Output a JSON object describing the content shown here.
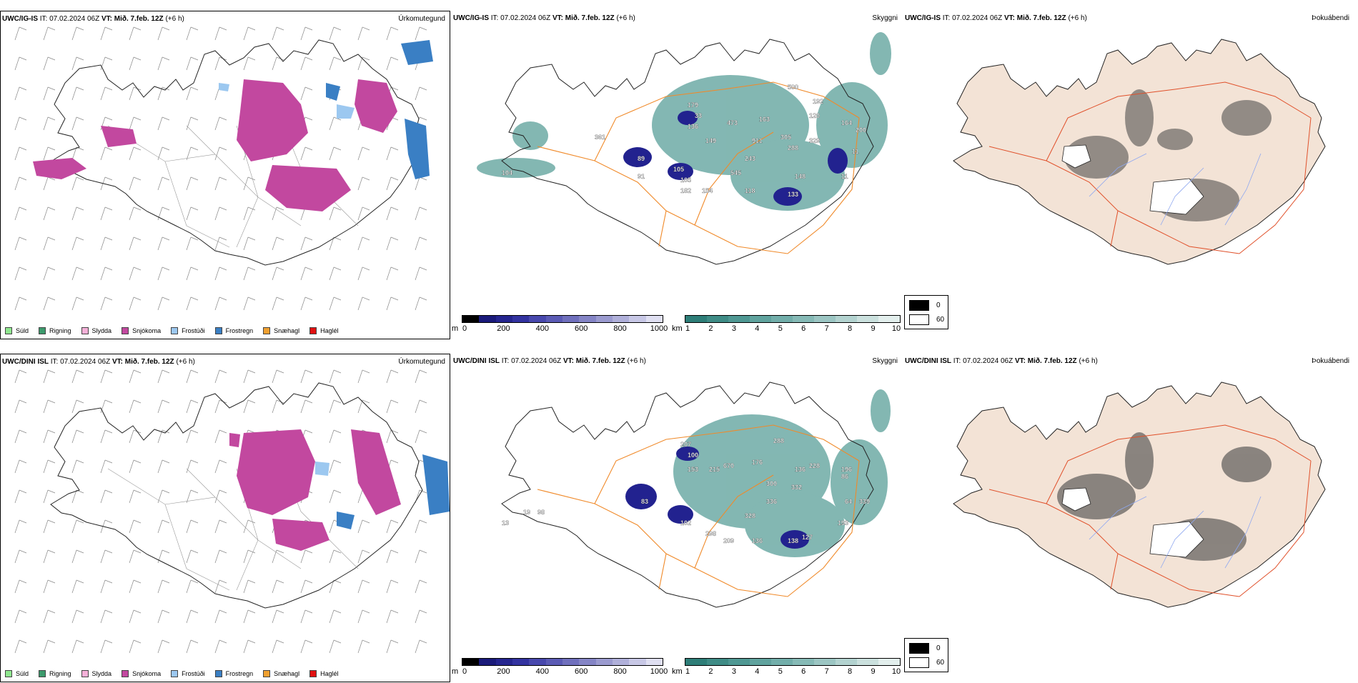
{
  "rows": [
    {
      "model": "UWC/IG-IS",
      "it_label": "IT:",
      "it_value": "07.02.2024 06Z",
      "vt_label": "VT:",
      "vt_value": "Mið. 7.feb. 12Z",
      "lead": "(+6 h)",
      "fields": {
        "precip": "Úrkomutegund",
        "ceiling": "Skyggni",
        "fog": "Þokuábendi"
      },
      "ceiling_labels": [
        "179",
        "361",
        "33",
        "473",
        "163",
        "500",
        "192",
        "136",
        "149",
        "911",
        "305",
        "329",
        "120",
        "164",
        "200",
        "89",
        "243",
        "288",
        "11",
        "105",
        "545",
        "105",
        "91",
        "148",
        "154",
        "182",
        "118",
        "133",
        "11",
        "104"
      ]
    },
    {
      "model": "UWC/DINI ISL",
      "it_label": "IT:",
      "it_value": "07.02.2024 06Z",
      "vt_label": "VT:",
      "vt_value": "Mið. 7.feb. 12Z",
      "lead": "(+6 h)",
      "fields": {
        "precip": "Úrkomutegund",
        "ceiling": "Skyggni",
        "fog": "Þokuábendi"
      },
      "ceiling_labels": [
        "207",
        "100",
        "153",
        "215",
        "670",
        "176",
        "288",
        "136",
        "300",
        "332",
        "228",
        "196",
        "83",
        "336",
        "86",
        "64",
        "339",
        "328",
        "102",
        "298",
        "209",
        "136",
        "138",
        "127",
        "193",
        "13",
        "98",
        "19"
      ]
    }
  ],
  "precip_legend": [
    {
      "label": "Súld",
      "color": "#8fe88f"
    },
    {
      "label": "Rigning",
      "color": "#3c9a6c"
    },
    {
      "label": "Slydda",
      "color": "#f5b0d8"
    },
    {
      "label": "Snjókoma",
      "color": "#c2489f"
    },
    {
      "label": "Frostúði",
      "color": "#9cc8f0"
    },
    {
      "label": "Frostregn",
      "color": "#3a7fc4"
    },
    {
      "label": "Snæhagl",
      "color": "#f0a030"
    },
    {
      "label": "Haglél",
      "color": "#e01010"
    }
  ],
  "height_scale": {
    "unit": "m",
    "ticks": [
      "0",
      "200",
      "400",
      "600",
      "800",
      "1000"
    ],
    "colors": [
      "#000000",
      "#1a1a7a",
      "#25258f",
      "#3333a0",
      "#4848ad",
      "#5b5bb5",
      "#7070bd",
      "#8585c6",
      "#9b9bd0",
      "#b0b0da",
      "#c8c8e6",
      "#e0e0f2"
    ]
  },
  "visibility_scale": {
    "unit": "km",
    "ticks": [
      "1",
      "2",
      "3",
      "4",
      "5",
      "6",
      "7",
      "8",
      "9",
      "10"
    ],
    "colors": [
      "#2e7e78",
      "#3f8c86",
      "#4f9893",
      "#60a39e",
      "#72aeaa",
      "#86bab6",
      "#9cc6c3",
      "#b3d3d0",
      "#cbe1de",
      "#e3efed"
    ]
  },
  "fog_scale": {
    "ticks": [
      "0",
      "60"
    ],
    "colors": [
      "#000000",
      "#ffffff"
    ]
  }
}
